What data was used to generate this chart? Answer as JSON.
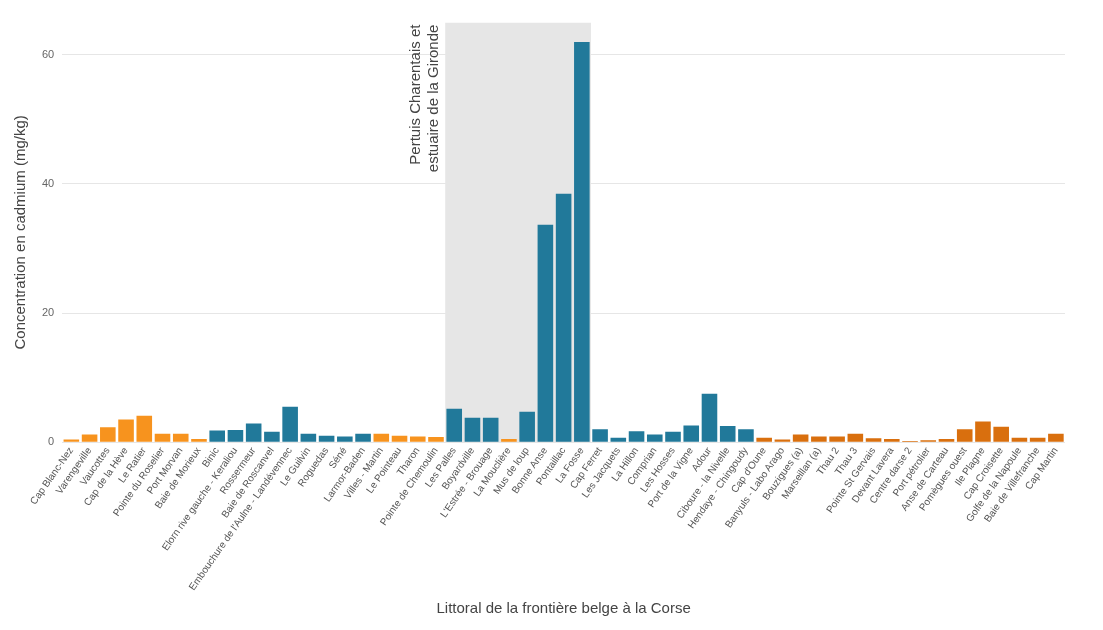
{
  "chart_data": {
    "type": "bar",
    "ylabel": "Concentration en cadmium (mg/kg)",
    "xlabel": "Littoral de la frontière belge à la Corse",
    "categories": [
      "Cap Blanc-Nez",
      "Varengeville",
      "Vaucottes",
      "Cap de la Hève",
      "Le Ratier",
      "Pointe du Roselier",
      "Port Morvan",
      "Baie de Morieux",
      "Binic",
      "Elorn rive gauche - Keraliou",
      "Rossermeur",
      "Baie de Roscanvel",
      "Embouchure de l'Aulne - Landévennec",
      "Le Guilvin",
      "Roguedas",
      "Séné",
      "Larmor-Baden",
      "Villes - Martin",
      "Le Pointeau",
      "Tharon",
      "Pointe de Chemoulin",
      "Les Palles",
      "Boyardville",
      "L'Estrée - Brouage",
      "La Mouclière",
      "Mus de loup",
      "Bonne Anse",
      "Pontaillac",
      "La Fosse",
      "Cap Ferret",
      "Les Jacquets",
      "La Hillon",
      "Comprian",
      "Les Hosses",
      "Port de la Vigne",
      "Adour",
      "Ciboure - la Nivelle",
      "Hendaye - Chingoudy",
      "Cap d'Oune",
      "Banyuls - Labo Arago",
      "Bouzigues (a)",
      "Marseillan (a)",
      "Thau 2",
      "Thau 3",
      "Pointe St Gervais",
      "Devant Lavera",
      "Centre darse 2",
      "Port pétrolier",
      "Anse de Carteau",
      "Pomègues ouest",
      "Ile Plagne",
      "Cap Croisette",
      "Golfe de la Napoule",
      "Baie de Villefranche",
      "Cap Martin"
    ],
    "values": [
      0.4,
      1.2,
      2.3,
      3.5,
      4.1,
      1.3,
      1.3,
      0.5,
      1.8,
      1.9,
      2.9,
      1.6,
      5.5,
      1.3,
      1.0,
      0.9,
      1.3,
      1.3,
      1.0,
      0.9,
      0.8,
      5.2,
      3.8,
      3.8,
      0.5,
      4.7,
      33.7,
      38.5,
      62.0,
      2.0,
      0.7,
      1.7,
      1.2,
      1.6,
      2.6,
      7.5,
      2.5,
      2.0,
      0.7,
      0.4,
      1.2,
      0.9,
      0.9,
      1.3,
      0.6,
      0.5,
      0.2,
      0.3,
      0.5,
      2.0,
      3.2,
      2.4,
      0.7,
      0.7,
      1.3
    ],
    "colors": [
      "#f7931e",
      "#f7931e",
      "#f7931e",
      "#f7931e",
      "#f7931e",
      "#f7931e",
      "#f7931e",
      "#f7931e",
      "#21799a",
      "#21799a",
      "#21799a",
      "#21799a",
      "#21799a",
      "#21799a",
      "#21799a",
      "#21799a",
      "#21799a",
      "#f7931e",
      "#f7931e",
      "#f7931e",
      "#f7931e",
      "#21799a",
      "#21799a",
      "#21799a",
      "#f7931e",
      "#21799a",
      "#21799a",
      "#21799a",
      "#21799a",
      "#21799a",
      "#21799a",
      "#21799a",
      "#21799a",
      "#21799a",
      "#21799a",
      "#21799a",
      "#21799a",
      "#21799a",
      "#d96f0e",
      "#d96f0e",
      "#d96f0e",
      "#d96f0e",
      "#d96f0e",
      "#d96f0e",
      "#d96f0e",
      "#d96f0e",
      "#d96f0e",
      "#d96f0e",
      "#d96f0e",
      "#d96f0e",
      "#d96f0e",
      "#d96f0e",
      "#d96f0e",
      "#d96f0e",
      "#d96f0e"
    ],
    "ylim": [
      0,
      65
    ],
    "yticks": [
      0,
      20,
      40,
      60
    ],
    "grid": "y",
    "bands": [
      {
        "axis": "x",
        "from": "Les Palles",
        "to": "La Fosse",
        "label": "Pertuis Charentais et estuaire de la Gironde",
        "color": "#e6e6e6"
      }
    ]
  }
}
